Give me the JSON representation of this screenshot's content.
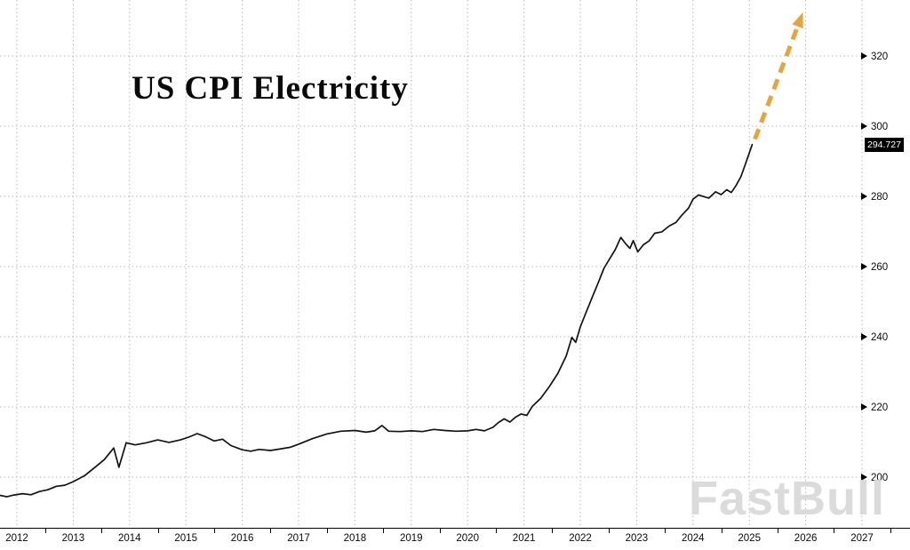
{
  "title": "US CPI Electricity",
  "watermark": "FastBull",
  "chart_data": {
    "type": "line",
    "title": "US CPI Electricity",
    "grid_style": "dotted",
    "legend": "none",
    "x_axis": {
      "tick_labels": [
        "2012",
        "2013",
        "2014",
        "2015",
        "2016",
        "2017",
        "2018",
        "2019",
        "2020",
        "2021",
        "2022",
        "2023",
        "2024",
        "2025",
        "2026",
        "2027"
      ],
      "range": [
        2011.55,
        2027.4
      ]
    },
    "y_axis": {
      "side": "right",
      "tick_labels": [
        320,
        300,
        280,
        260,
        240,
        220,
        200
      ],
      "range": [
        186,
        336
      ]
    },
    "last_value": 294.727,
    "last_value_label": "294.727",
    "colors": {
      "series_line": "#131313",
      "projection_arrow": "#E8A33C",
      "grid": "#b8b8b8",
      "last_value_box_bg": "#000000",
      "last_value_box_text": "#ffffff",
      "watermark": "#d8d8d8",
      "axis_text": "#0a0a0a"
    },
    "series": [
      {
        "name": "US CPI Electricity Index",
        "color": "#131313",
        "style": "solid",
        "points": [
          [
            2011.58,
            194.2
          ],
          [
            2011.7,
            194.8
          ],
          [
            2011.82,
            194.4
          ],
          [
            2011.95,
            194.9
          ],
          [
            2012.1,
            195.3
          ],
          [
            2012.25,
            195.0
          ],
          [
            2012.4,
            195.9
          ],
          [
            2012.55,
            196.4
          ],
          [
            2012.7,
            197.4
          ],
          [
            2012.85,
            197.7
          ],
          [
            2013.0,
            198.7
          ],
          [
            2013.2,
            200.4
          ],
          [
            2013.4,
            203.0
          ],
          [
            2013.55,
            205.0
          ],
          [
            2013.72,
            208.3
          ],
          [
            2013.81,
            202.8
          ],
          [
            2013.94,
            209.8
          ],
          [
            2014.1,
            209.2
          ],
          [
            2014.3,
            209.8
          ],
          [
            2014.5,
            210.6
          ],
          [
            2014.7,
            209.9
          ],
          [
            2014.9,
            210.6
          ],
          [
            2015.05,
            211.4
          ],
          [
            2015.2,
            212.4
          ],
          [
            2015.35,
            211.5
          ],
          [
            2015.5,
            210.3
          ],
          [
            2015.65,
            210.8
          ],
          [
            2015.8,
            209.0
          ],
          [
            2016.0,
            207.8
          ],
          [
            2016.15,
            207.4
          ],
          [
            2016.3,
            207.9
          ],
          [
            2016.5,
            207.6
          ],
          [
            2016.7,
            208.1
          ],
          [
            2016.85,
            208.5
          ],
          [
            2017.0,
            209.4
          ],
          [
            2017.25,
            211.0
          ],
          [
            2017.5,
            212.3
          ],
          [
            2017.75,
            213.1
          ],
          [
            2018.0,
            213.3
          ],
          [
            2018.2,
            212.8
          ],
          [
            2018.35,
            213.2
          ],
          [
            2018.48,
            214.7
          ],
          [
            2018.6,
            213.1
          ],
          [
            2018.8,
            213.0
          ],
          [
            2019.0,
            213.2
          ],
          [
            2019.2,
            213.0
          ],
          [
            2019.4,
            213.6
          ],
          [
            2019.6,
            213.3
          ],
          [
            2019.8,
            213.1
          ],
          [
            2020.0,
            213.2
          ],
          [
            2020.15,
            213.6
          ],
          [
            2020.3,
            213.2
          ],
          [
            2020.45,
            214.2
          ],
          [
            2020.55,
            215.6
          ],
          [
            2020.65,
            216.6
          ],
          [
            2020.75,
            215.7
          ],
          [
            2020.85,
            217.1
          ],
          [
            2020.95,
            218.0
          ],
          [
            2021.05,
            217.6
          ],
          [
            2021.15,
            220.2
          ],
          [
            2021.3,
            222.5
          ],
          [
            2021.45,
            225.8
          ],
          [
            2021.6,
            229.5
          ],
          [
            2021.75,
            234.5
          ],
          [
            2021.85,
            239.8
          ],
          [
            2021.92,
            238.4
          ],
          [
            2022.0,
            242.8
          ],
          [
            2022.1,
            246.8
          ],
          [
            2022.2,
            250.8
          ],
          [
            2022.32,
            255.5
          ],
          [
            2022.42,
            259.5
          ],
          [
            2022.52,
            262.2
          ],
          [
            2022.62,
            264.8
          ],
          [
            2022.72,
            268.3
          ],
          [
            2022.8,
            266.6
          ],
          [
            2022.88,
            265.2
          ],
          [
            2022.94,
            267.4
          ],
          [
            2023.02,
            264.2
          ],
          [
            2023.12,
            266.2
          ],
          [
            2023.22,
            267.3
          ],
          [
            2023.32,
            269.5
          ],
          [
            2023.45,
            269.9
          ],
          [
            2023.58,
            271.6
          ],
          [
            2023.7,
            272.6
          ],
          [
            2023.8,
            274.6
          ],
          [
            2023.92,
            276.6
          ],
          [
            2024.0,
            279.2
          ],
          [
            2024.1,
            280.4
          ],
          [
            2024.2,
            279.9
          ],
          [
            2024.28,
            279.5
          ],
          [
            2024.4,
            281.3
          ],
          [
            2024.5,
            280.5
          ],
          [
            2024.6,
            281.9
          ],
          [
            2024.68,
            281.1
          ],
          [
            2024.76,
            283.0
          ],
          [
            2024.85,
            285.6
          ],
          [
            2024.93,
            289.2
          ],
          [
            2025.05,
            294.727
          ]
        ]
      },
      {
        "name": "Projected trend",
        "color": "#E8A33C",
        "style": "dashed-arrow",
        "points": [
          [
            2025.1,
            296.3
          ],
          [
            2025.93,
            331.5
          ]
        ]
      }
    ]
  }
}
